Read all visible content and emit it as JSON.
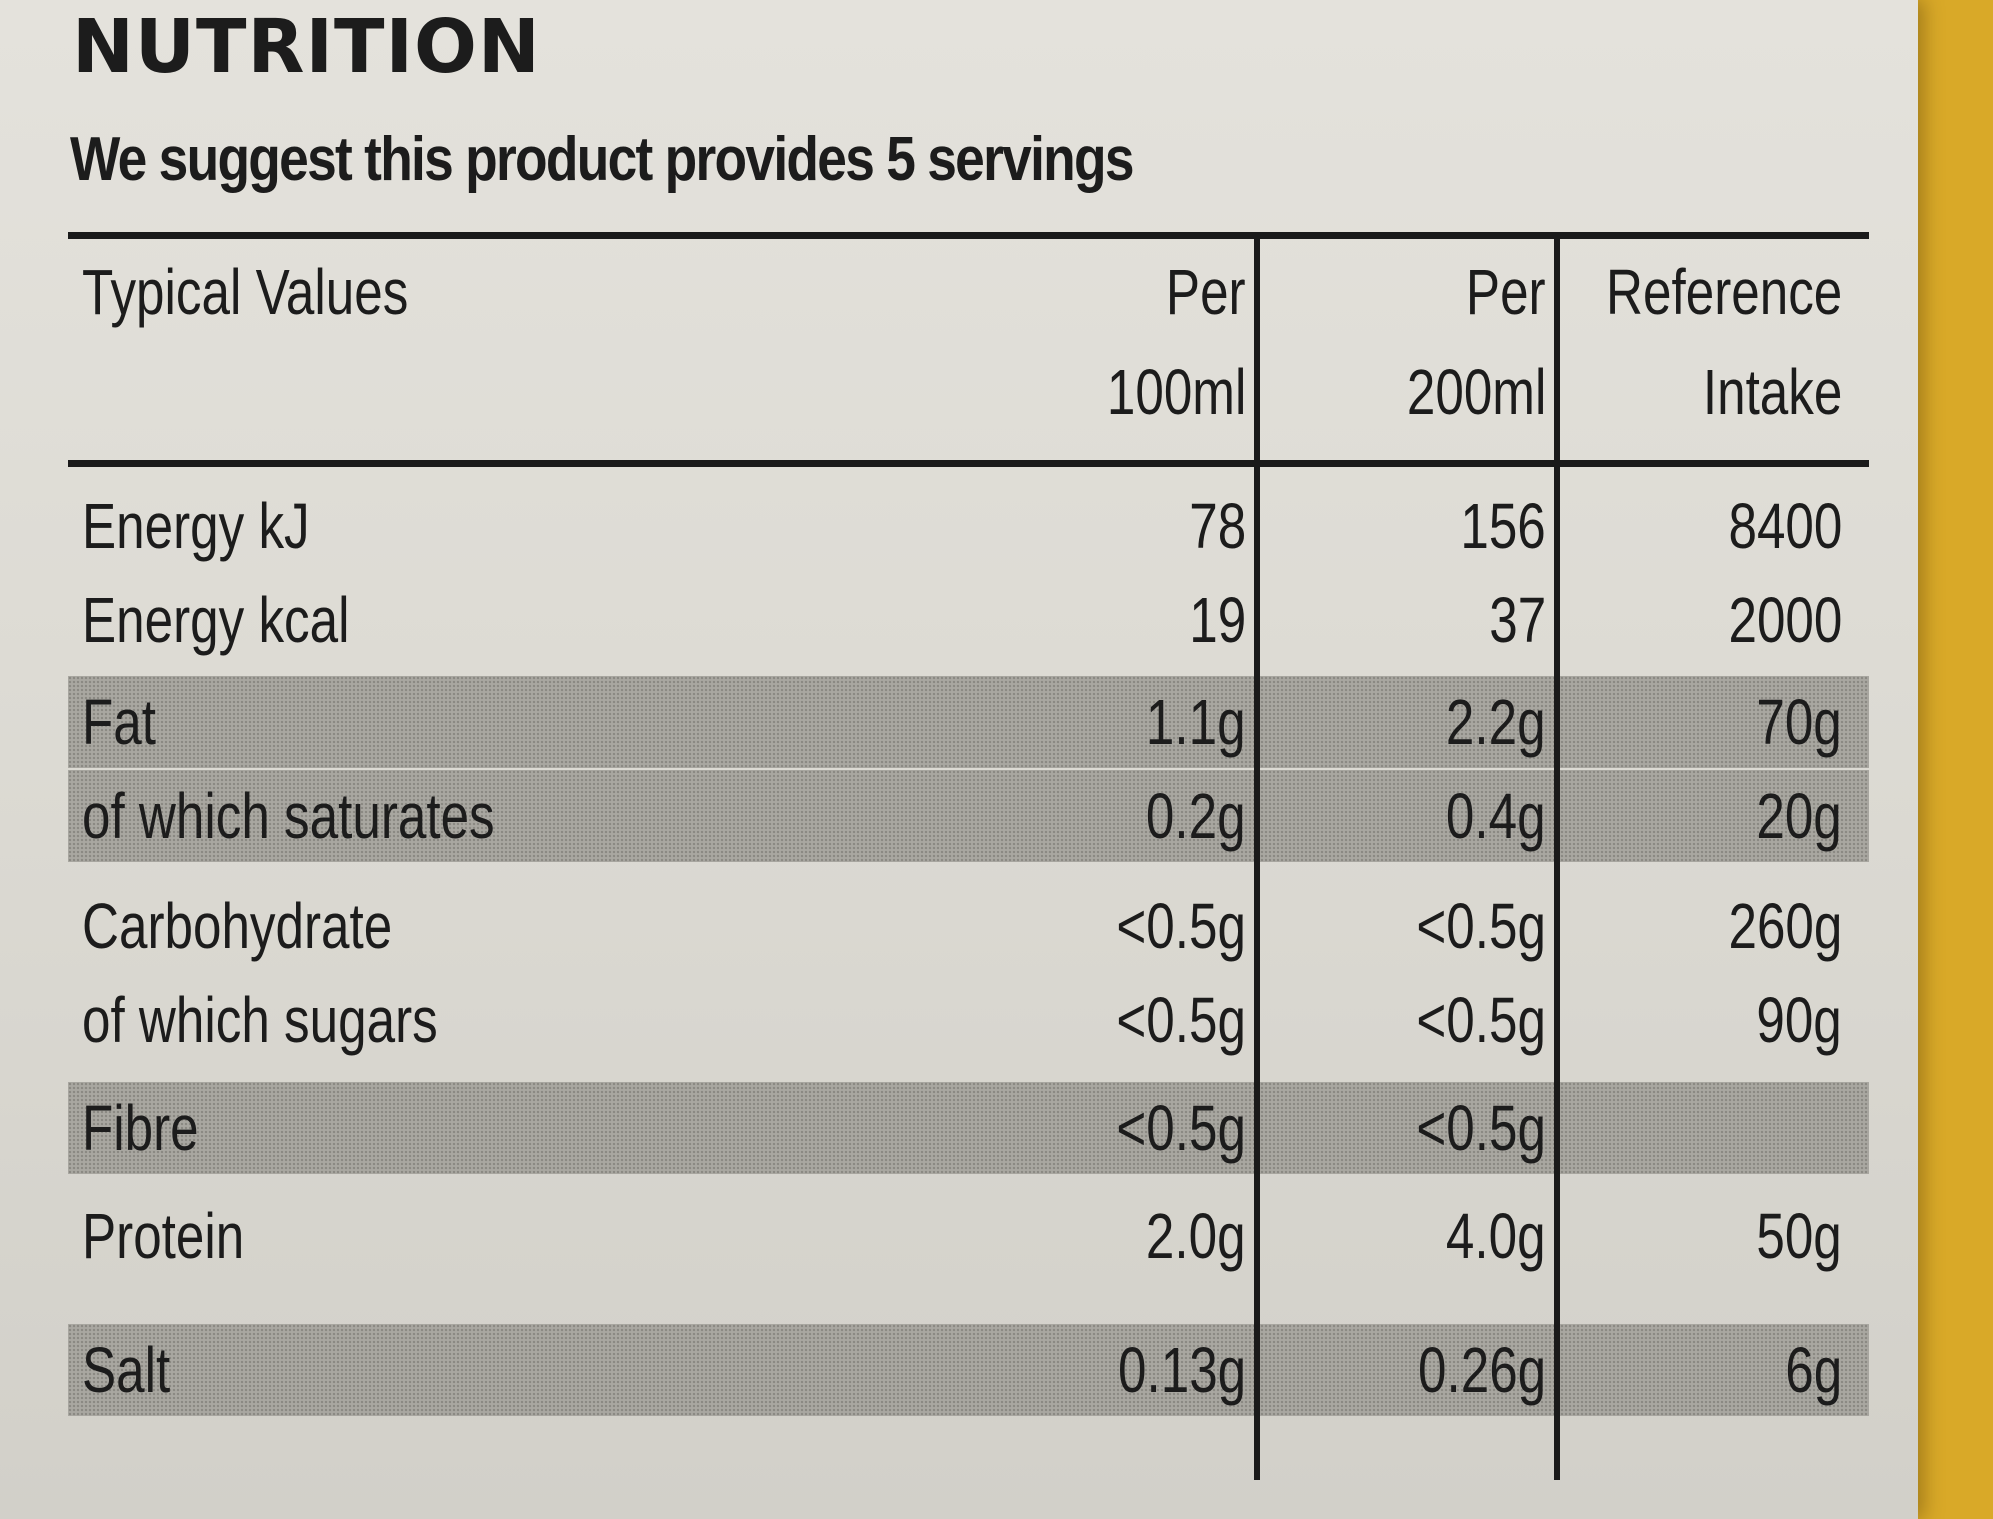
{
  "title": "NUTRITION",
  "subtitle": "We suggest this product provides 5 servings",
  "table": {
    "headers": {
      "label": "Typical Values",
      "col1_line1": "Per",
      "col1_line2": "100ml",
      "col2_line1": "Per",
      "col2_line2": "200ml",
      "col3_line1": "Reference",
      "col3_line2": "Intake"
    },
    "rows": [
      {
        "name": "Energy kJ",
        "per100": "78",
        "per200": "156",
        "ri": "8400"
      },
      {
        "name": "Energy kcal",
        "per100": "19",
        "per200": "37",
        "ri": "2000"
      },
      {
        "name": "Fat",
        "per100": "1.1g",
        "per200": "2.2g",
        "ri": "70g"
      },
      {
        "name": "of which saturates",
        "per100": "0.2g",
        "per200": "0.4g",
        "ri": "20g"
      },
      {
        "name": "Carbohydrate",
        "per100": "<0.5g",
        "per200": "<0.5g",
        "ri": "260g"
      },
      {
        "name": "of which sugars",
        "per100": "<0.5g",
        "per200": "<0.5g",
        "ri": "90g"
      },
      {
        "name": "Fibre",
        "per100": "<0.5g",
        "per200": "<0.5g",
        "ri": ""
      },
      {
        "name": "Protein",
        "per100": "2.0g",
        "per200": "4.0g",
        "ri": "50g"
      },
      {
        "name": "Salt",
        "per100": "0.13g",
        "per200": "0.26g",
        "ri": "6g"
      }
    ]
  },
  "colors": {
    "background": "#d9a928",
    "label": "#e0ded8",
    "shading": "#a9a7a1",
    "text": "#1c1c1c"
  }
}
